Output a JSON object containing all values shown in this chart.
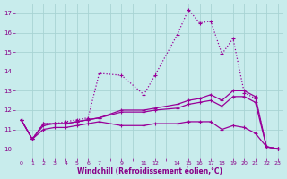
{
  "background_color": "#c8ecec",
  "grid_color": "#a8d4d4",
  "line_color": "#990099",
  "xlabel": "Windchill (Refroidissement éolien,°C)",
  "xlabel_color": "#880088",
  "tick_color": "#880088",
  "ylim": [
    9.5,
    17.5
  ],
  "yticks": [
    10,
    11,
    12,
    13,
    14,
    15,
    16,
    17
  ],
  "xtick_labels": [
    "0",
    "1",
    "2",
    "3",
    "4",
    "5",
    "6",
    "7",
    "",
    "9",
    "",
    "11",
    "12",
    "",
    "14",
    "15",
    "16",
    "17",
    "18",
    "19",
    "20",
    "21",
    "22",
    "23"
  ],
  "n_xpoints": 24,
  "series": [
    {
      "indices": [
        0,
        1,
        2,
        3,
        4,
        5,
        6,
        7,
        9,
        11,
        12,
        14,
        15,
        16,
        17,
        18,
        19,
        20,
        21,
        22,
        23
      ],
      "y": [
        11.5,
        10.5,
        11.3,
        11.3,
        11.4,
        11.5,
        11.6,
        13.9,
        13.8,
        12.8,
        13.8,
        15.9,
        17.2,
        16.5,
        16.6,
        14.9,
        15.7,
        12.9,
        12.6,
        10.1,
        10.0
      ],
      "linestyle": ":",
      "linewidth": 0.9
    },
    {
      "indices": [
        0,
        1,
        2,
        3,
        4,
        5,
        6,
        7,
        9,
        11,
        12,
        14,
        15,
        16,
        17,
        18,
        19,
        20,
        21,
        22,
        23
      ],
      "y": [
        11.5,
        10.5,
        11.3,
        11.3,
        11.3,
        11.4,
        11.5,
        11.6,
        12.0,
        12.0,
        12.1,
        12.3,
        12.5,
        12.6,
        12.8,
        12.5,
        13.0,
        13.0,
        12.7,
        10.1,
        10.0
      ],
      "linestyle": "-",
      "linewidth": 0.9
    },
    {
      "indices": [
        0,
        1,
        2,
        3,
        4,
        5,
        6,
        7,
        9,
        11,
        12,
        14,
        15,
        16,
        17,
        18,
        19,
        20,
        21,
        22,
        23
      ],
      "y": [
        11.5,
        10.5,
        11.2,
        11.3,
        11.3,
        11.4,
        11.5,
        11.6,
        11.9,
        11.9,
        12.0,
        12.1,
        12.3,
        12.4,
        12.5,
        12.2,
        12.7,
        12.7,
        12.4,
        10.1,
        10.0
      ],
      "linestyle": "-",
      "linewidth": 0.9
    },
    {
      "indices": [
        0,
        1,
        2,
        3,
        4,
        5,
        6,
        7,
        9,
        11,
        12,
        14,
        15,
        16,
        17,
        18,
        19,
        20,
        21,
        22,
        23
      ],
      "y": [
        11.5,
        10.5,
        11.0,
        11.1,
        11.1,
        11.2,
        11.3,
        11.4,
        11.2,
        11.2,
        11.3,
        11.3,
        11.4,
        11.4,
        11.4,
        11.0,
        11.2,
        11.1,
        10.8,
        10.1,
        10.0
      ],
      "linestyle": "-",
      "linewidth": 0.9
    }
  ]
}
